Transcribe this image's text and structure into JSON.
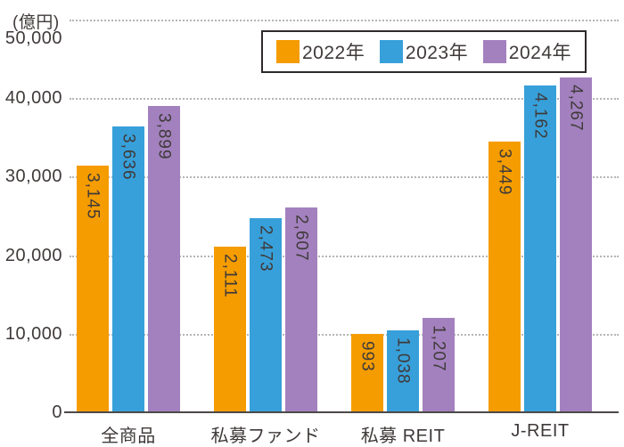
{
  "chart_data": {
    "type": "bar",
    "unit": "(億円)",
    "categories": [
      "全商品",
      "私募ファンド",
      "私募 REIT",
      "J-REIT"
    ],
    "series": [
      {
        "name": "2022年",
        "color": "#F59C00",
        "values": [
          3145,
          2111,
          993,
          3449
        ],
        "bar_labels": [
          "3,145",
          "2,111",
          "993",
          "3,449"
        ]
      },
      {
        "name": "2023年",
        "color": "#37A0DA",
        "values": [
          3636,
          2473,
          1038,
          4162
        ],
        "bar_labels": [
          "3,636",
          "2,473",
          "1,038",
          "4,162"
        ]
      },
      {
        "name": "2024年",
        "color": "#A381BE",
        "values": [
          3899,
          2607,
          1207,
          4267
        ],
        "bar_labels": [
          "3,899",
          "2,607",
          "1,207",
          "4,267"
        ]
      }
    ],
    "yticks": [
      0,
      10000,
      20000,
      30000,
      40000,
      50000
    ],
    "ytick_labels": [
      "0",
      "10,000",
      "20,000",
      "30,000",
      "40,000",
      "50,000"
    ],
    "ylim": [
      0,
      50000
    ],
    "bar_position_scale": 10,
    "grid": "horizontal-dotted",
    "legend_position": "top-right"
  },
  "colors": {
    "text": "#3F3A39",
    "axis": "#4C4948",
    "grid": "#B5B5B5",
    "legend-border": "#2E2A29",
    "background": "#FFFFFF"
  }
}
